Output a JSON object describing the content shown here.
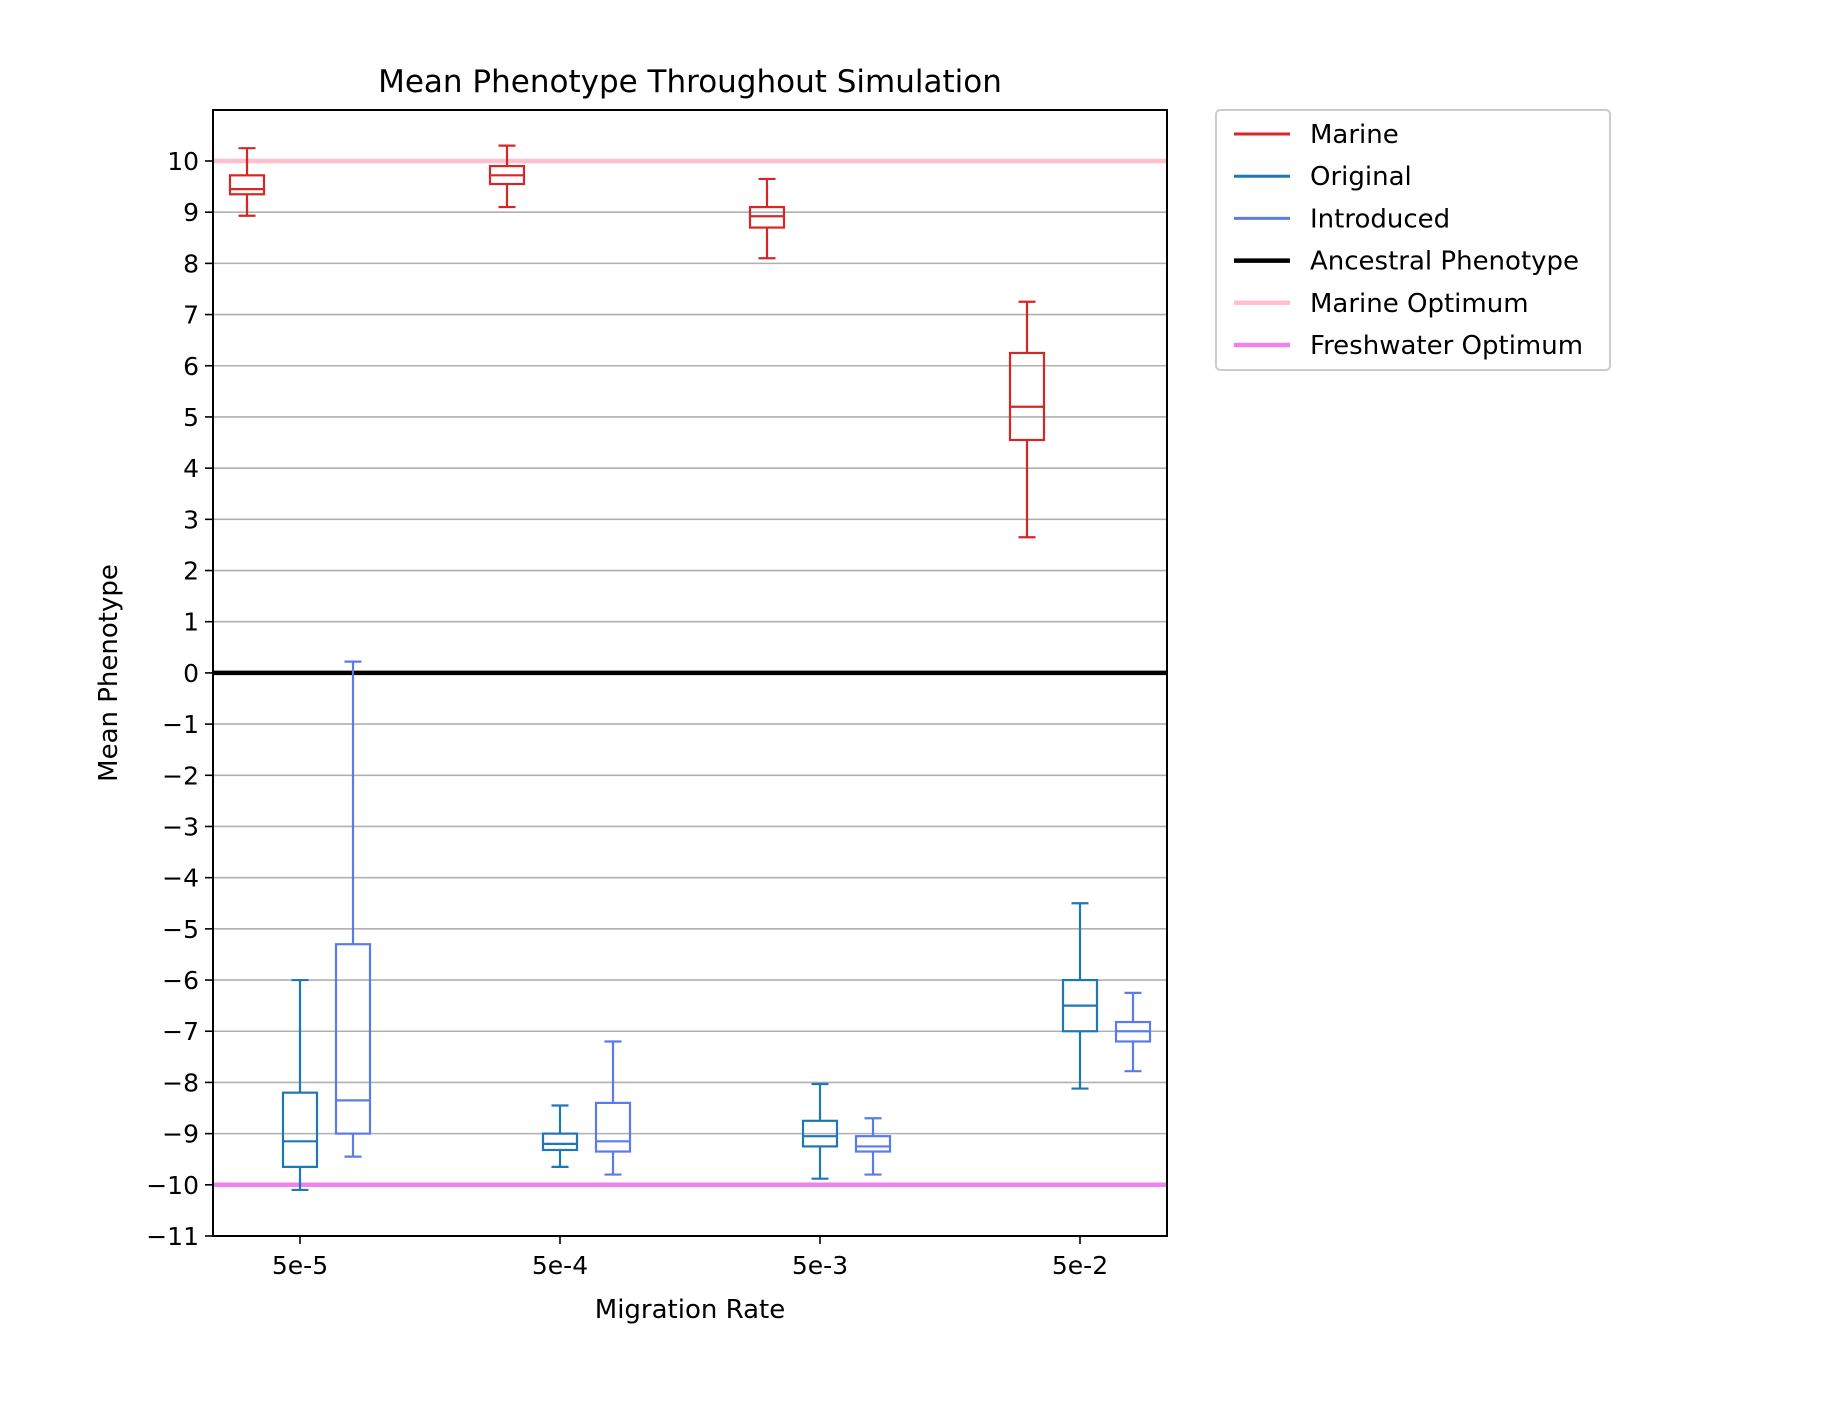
{
  "chart_data": {
    "type": "box",
    "title": "Mean Phenotype Throughout Simulation",
    "xlabel": "Migration Rate",
    "ylabel": "Mean Phenotype",
    "categories": [
      "5e-5",
      "5e-4",
      "5e-3",
      "5e-2"
    ],
    "ylim": [
      -11,
      11
    ],
    "yticks": [
      10,
      9,
      8,
      7,
      6,
      5,
      4,
      3,
      2,
      1,
      0,
      -1,
      -2,
      -3,
      -4,
      -5,
      -6,
      -7,
      -8,
      -9,
      -10,
      -11
    ],
    "ytick_labels": [
      "10",
      "9",
      "8",
      "7",
      "6",
      "5",
      "4",
      "3",
      "2",
      "1",
      "0",
      "−1",
      "−2",
      "−3",
      "−4",
      "−5",
      "−6",
      "−7",
      "−8",
      "−9",
      "−10",
      "−11"
    ],
    "grid": "y",
    "legend_position": "outside-top-right",
    "series": [
      {
        "name": "Marine",
        "color": "#d62728",
        "boxes": [
          {
            "category": "5e-5",
            "whislo": 8.93,
            "q1": 9.35,
            "median": 9.45,
            "q3": 9.72,
            "whishi": 10.25
          },
          {
            "category": "5e-4",
            "whislo": 9.1,
            "q1": 9.55,
            "median": 9.72,
            "q3": 9.9,
            "whishi": 10.3
          },
          {
            "category": "5e-3",
            "whislo": 8.1,
            "q1": 8.7,
            "median": 8.92,
            "q3": 9.1,
            "whishi": 9.65
          },
          {
            "category": "5e-2",
            "whislo": 2.65,
            "q1": 4.55,
            "median": 5.2,
            "q3": 6.25,
            "whishi": 7.25
          }
        ]
      },
      {
        "name": "Original",
        "color": "#1f77b4",
        "boxes": [
          {
            "category": "5e-5",
            "whislo": -10.1,
            "q1": -9.65,
            "median": -9.15,
            "q3": -8.2,
            "whishi": -6.0
          },
          {
            "category": "5e-4",
            "whislo": -9.65,
            "q1": -9.32,
            "median": -9.2,
            "q3": -9.0,
            "whishi": -8.45
          },
          {
            "category": "5e-3",
            "whislo": -9.88,
            "q1": -9.25,
            "median": -9.05,
            "q3": -8.75,
            "whishi": -8.03
          },
          {
            "category": "5e-2",
            "whislo": -8.12,
            "q1": -7.0,
            "median": -6.5,
            "q3": -6.0,
            "whishi": -4.5
          }
        ]
      },
      {
        "name": "Introduced",
        "color": "#5b7bea",
        "boxes": [
          {
            "category": "5e-5",
            "whislo": -9.45,
            "q1": -9.0,
            "median": -8.35,
            "q3": -5.3,
            "whishi": 0.22
          },
          {
            "category": "5e-4",
            "whislo": -9.8,
            "q1": -9.35,
            "median": -9.15,
            "q3": -8.4,
            "whishi": -7.2
          },
          {
            "category": "5e-3",
            "whislo": -9.8,
            "q1": -9.35,
            "median": -9.25,
            "q3": -9.05,
            "whishi": -8.7
          },
          {
            "category": "5e-2",
            "whislo": -7.78,
            "q1": -7.2,
            "median": -7.0,
            "q3": -6.82,
            "whishi": -6.25
          }
        ]
      }
    ],
    "reference_lines": [
      {
        "name": "Ancestral Phenotype",
        "y": 0,
        "color": "#000000"
      },
      {
        "name": "Marine Optimum",
        "y": 10,
        "color": "#ffc0cb"
      },
      {
        "name": "Freshwater Optimum",
        "y": -10,
        "color": "#ee82ee"
      }
    ],
    "legend": [
      {
        "label": "Marine",
        "color": "#d62728"
      },
      {
        "label": "Original",
        "color": "#1f77b4"
      },
      {
        "label": "Introduced",
        "color": "#5b7bea"
      },
      {
        "label": "Ancestral Phenotype",
        "color": "#000000"
      },
      {
        "label": "Marine Optimum",
        "color": "#ffc0cb"
      },
      {
        "label": "Freshwater Optimum",
        "color": "#ee82ee"
      }
    ]
  }
}
